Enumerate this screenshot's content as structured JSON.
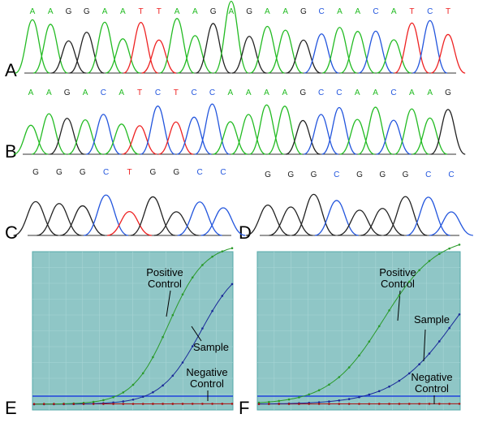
{
  "colors": {
    "A": "#22bb22",
    "C": "#2255dd",
    "G": "#222222",
    "T": "#ee2222",
    "plot_bg": "#8fc6c6",
    "positive": "#2a9a2a",
    "sample": "#1a2a99",
    "negative": "#aa1111",
    "threshold": "#2244dd"
  },
  "panels": [
    {
      "id": "A",
      "label": "A",
      "sequence": [
        "A",
        "A",
        "G",
        "G",
        "A",
        "A",
        "T",
        "T",
        "A",
        "A",
        "G",
        "A",
        "G",
        "A",
        "A",
        "G",
        "C",
        "A",
        "A",
        "C",
        "A",
        "T",
        "C",
        "T"
      ]
    },
    {
      "id": "B",
      "label": "B",
      "sequence": [
        "A",
        "A",
        "G",
        "A",
        "C",
        "A",
        "T",
        "C",
        "T",
        "C",
        "C",
        "A",
        "A",
        "A",
        "A",
        "G",
        "C",
        "C",
        "A",
        "A",
        "C",
        "A",
        "A",
        "G"
      ]
    },
    {
      "id": "C",
      "label": "C",
      "sequence": [
        "G",
        "G",
        "G",
        "C",
        "T",
        "G",
        "G",
        "C",
        "C"
      ]
    },
    {
      "id": "D",
      "label": "D",
      "sequence": [
        "G",
        "G",
        "G",
        "C",
        "G",
        "G",
        "G",
        "C",
        "C"
      ]
    }
  ],
  "qpcr": [
    {
      "id": "E",
      "label": "E",
      "annotations": [
        "Positive",
        "Control",
        "Sample",
        "Negative",
        "Control"
      ]
    },
    {
      "id": "F",
      "label": "F",
      "annotations": [
        "Positive",
        "Control",
        "Sample",
        "Negative",
        "Control"
      ]
    }
  ]
}
